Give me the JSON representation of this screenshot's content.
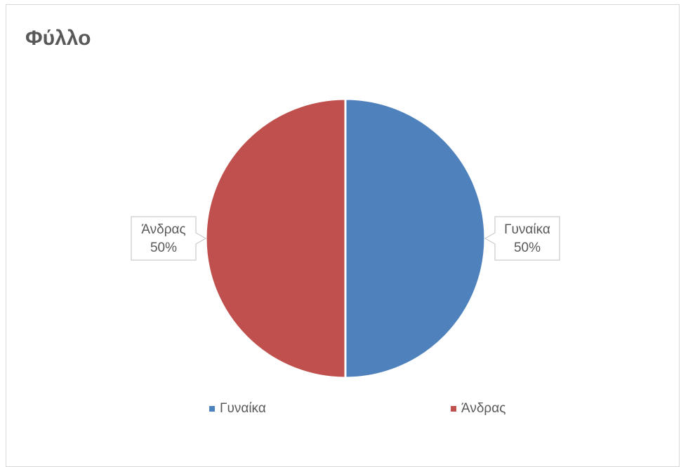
{
  "chart_data": {
    "type": "pie",
    "title": "Φύλλο",
    "categories": [
      "Γυναίκα",
      "Άνδρας"
    ],
    "values": [
      50,
      50
    ],
    "data_labels": [
      {
        "category": "Γυναίκα",
        "percent": "50%"
      },
      {
        "category": "Άνδρας",
        "percent": "50%"
      }
    ],
    "colors": [
      "#4f81bd",
      "#c0504d"
    ],
    "legend_position": "bottom"
  }
}
